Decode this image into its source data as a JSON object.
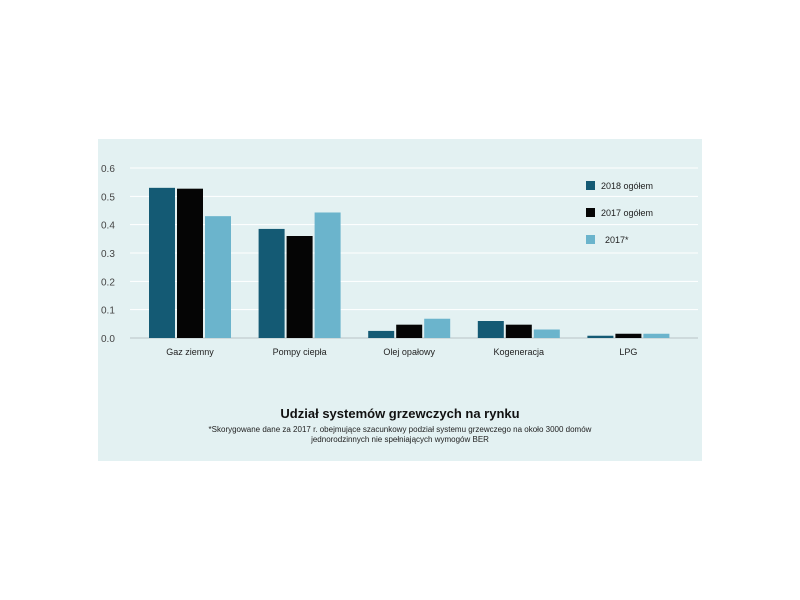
{
  "chart_data": {
    "type": "bar",
    "title": "Udział systemów grzewczych na rynku",
    "footnote": "*Skorygowane dane za 2017 r. obejmujące szacunkowy podział systemu grzewczego na około 3000 domów jednorodzinnych nie spełniających wymogów BER",
    "categories": [
      "Gaz ziemny",
      "Pompy ciepła",
      "Olej opałowy",
      "Kogeneracja",
      "LPG"
    ],
    "series": [
      {
        "name": "2018 ogółem",
        "color": "#145a74",
        "values": [
          0.53,
          0.385,
          0.025,
          0.06,
          0.008
        ]
      },
      {
        "name": "2017 ogółem",
        "color": "#050505",
        "values": [
          0.527,
          0.36,
          0.047,
          0.047,
          0.015
        ]
      },
      {
        "name": "2017*",
        "color": "#6bb4cc",
        "values": [
          0.43,
          0.443,
          0.068,
          0.03,
          0.015
        ]
      }
    ],
    "y_ticks": [
      "0.0",
      "0.1",
      "0.2",
      "0.3",
      "0.4",
      "0.5",
      "0.6"
    ],
    "ylim": [
      0,
      0.6
    ],
    "grid": true,
    "legend_position": "top-right"
  }
}
